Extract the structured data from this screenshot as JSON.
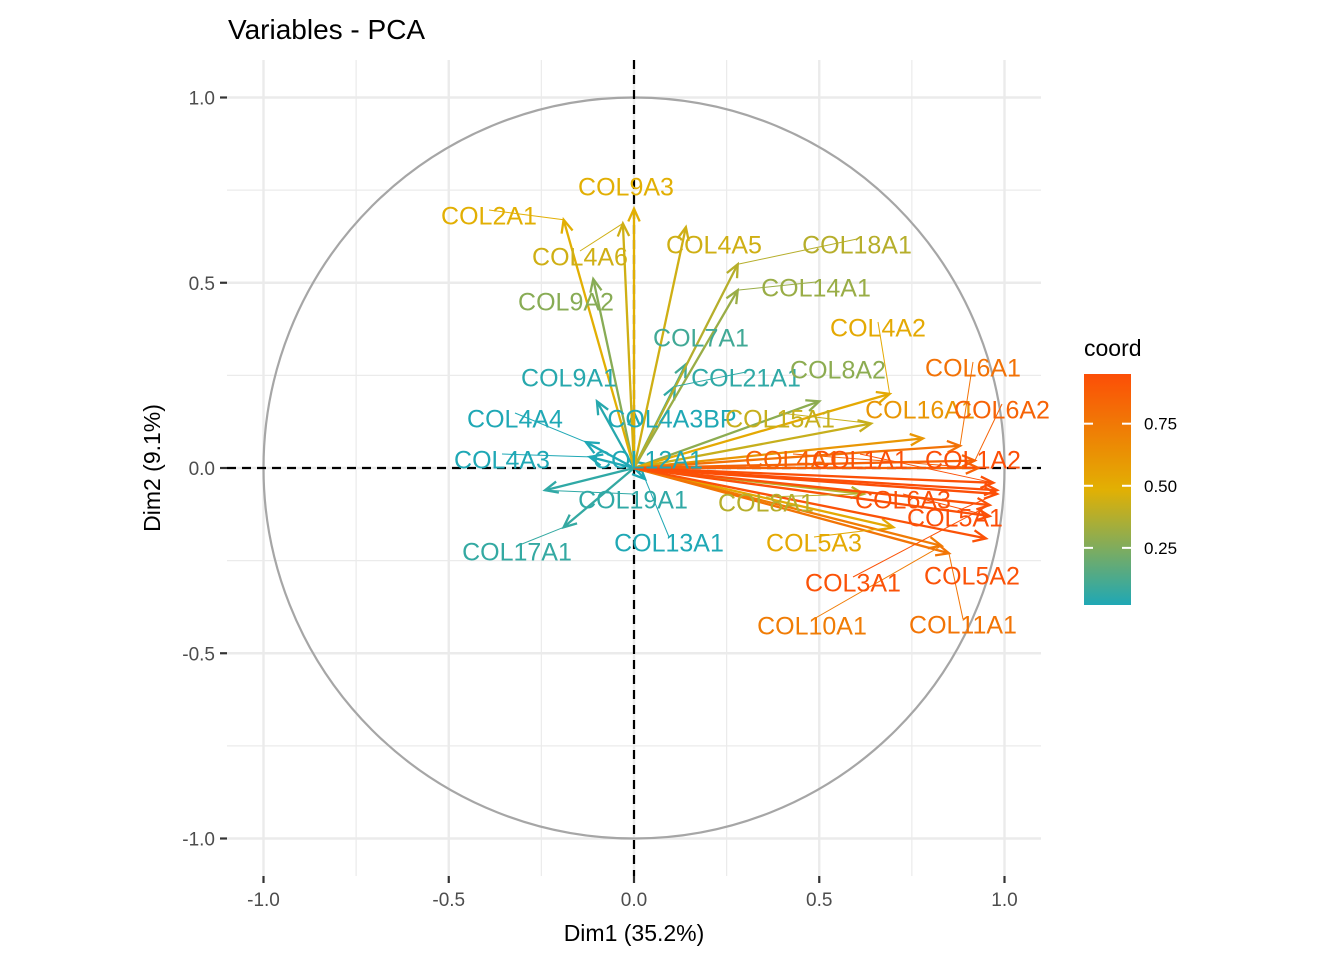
{
  "chart_data": {
    "type": "scatter",
    "title": "Variables - PCA",
    "xlabel": "Dim1 (35.2%)",
    "ylabel": "Dim2 (9.1%)",
    "xlim": [
      -1.05,
      1.05
    ],
    "ylim": [
      -1.1,
      1.1
    ],
    "x_ticks": [
      -1.0,
      -0.5,
      0.0,
      0.5,
      1.0
    ],
    "x_tick_labels": [
      "-1.0",
      "-0.5",
      "0.0",
      "0.5",
      "1.0"
    ],
    "y_ticks": [
      1.0,
      0.5,
      0.0,
      -0.5,
      -1.0
    ],
    "y_tick_labels": [
      "1.0",
      "0.5",
      "0.0",
      "-0.5",
      "-1.0"
    ],
    "grid": true,
    "unit_circle": true,
    "reference_lines": [
      "x=0",
      "y=0"
    ],
    "legend": {
      "title": "coord",
      "position": "right",
      "ticks": [
        0.75,
        0.5,
        0.25
      ],
      "tick_labels": [
        "0.75",
        "0.50",
        "0.25"
      ],
      "range": [
        0.02,
        0.95
      ],
      "colors": {
        "low": "#1fa8b5",
        "mid": "#e2b003",
        "high": "#fc4e07"
      }
    },
    "variables": [
      {
        "name": "COL2A1",
        "x": -0.19,
        "y": 0.67,
        "coord": 0.49
      },
      {
        "name": "COL9A3",
        "x": 0.0,
        "y": 0.7,
        "coord": 0.49
      },
      {
        "name": "COL4A6",
        "x": -0.03,
        "y": 0.66,
        "coord": 0.44
      },
      {
        "name": "COL4A5",
        "x": 0.14,
        "y": 0.65,
        "coord": 0.44
      },
      {
        "name": "COL18A1",
        "x": 0.28,
        "y": 0.55,
        "coord": 0.38
      },
      {
        "name": "COL14A1",
        "x": 0.28,
        "y": 0.48,
        "coord": 0.31
      },
      {
        "name": "COL9A2",
        "x": -0.11,
        "y": 0.51,
        "coord": 0.27
      },
      {
        "name": "COL7A1",
        "x": 0.14,
        "y": 0.28,
        "coord": 0.1
      },
      {
        "name": "COL4A2",
        "x": 0.69,
        "y": 0.2,
        "coord": 0.52
      },
      {
        "name": "COL8A2",
        "x": 0.5,
        "y": 0.18,
        "coord": 0.28
      },
      {
        "name": "COL9A1",
        "x": -0.1,
        "y": 0.18,
        "coord": 0.04
      },
      {
        "name": "COL21A1",
        "x": 0.11,
        "y": 0.22,
        "coord": 0.06
      },
      {
        "name": "COL6A1",
        "x": 0.88,
        "y": 0.06,
        "coord": 0.78
      },
      {
        "name": "COL16A1",
        "x": 0.78,
        "y": 0.08,
        "coord": 0.61
      },
      {
        "name": "COL6A2",
        "x": 0.92,
        "y": 0.02,
        "coord": 0.85
      },
      {
        "name": "COL4A4",
        "x": -0.13,
        "y": 0.07,
        "coord": 0.02
      },
      {
        "name": "COL4A3BP",
        "x": 0.0,
        "y": 0.15,
        "coord": 0.02
      },
      {
        "name": "COL15A1",
        "x": 0.64,
        "y": 0.12,
        "coord": 0.42
      },
      {
        "name": "COL4A3",
        "x": -0.12,
        "y": 0.03,
        "coord": 0.02
      },
      {
        "name": "COL12A1",
        "x": 0.04,
        "y": 0.01,
        "coord": 0.02
      },
      {
        "name": "COL4A1",
        "x": 0.93,
        "y": 0.0,
        "coord": 0.86
      },
      {
        "name": "COL1A1",
        "x": 0.97,
        "y": -0.04,
        "coord": 0.94
      },
      {
        "name": "COL1A2",
        "x": 0.98,
        "y": -0.06,
        "coord": 0.95
      },
      {
        "name": "COL19A1",
        "x": -0.24,
        "y": -0.06,
        "coord": 0.06
      },
      {
        "name": "COL8A1",
        "x": 0.62,
        "y": -0.07,
        "coord": 0.38
      },
      {
        "name": "COL6A3",
        "x": 0.96,
        "y": -0.13,
        "coord": 0.94
      },
      {
        "name": "COL5A1",
        "x": 0.98,
        "y": -0.07,
        "coord": 0.95
      },
      {
        "name": "COL17A1",
        "x": -0.19,
        "y": -0.16,
        "coord": 0.07
      },
      {
        "name": "COL13A1",
        "x": 0.03,
        "y": -0.03,
        "coord": 0.02
      },
      {
        "name": "COL5A3",
        "x": 0.7,
        "y": -0.16,
        "coord": 0.52
      },
      {
        "name": "COL3A1",
        "x": 0.96,
        "y": -0.1,
        "coord": 0.93
      },
      {
        "name": "COL5A2",
        "x": 0.95,
        "y": -0.19,
        "coord": 0.93
      },
      {
        "name": "COL10A1",
        "x": 0.83,
        "y": -0.21,
        "coord": 0.73
      },
      {
        "name": "COL11A1",
        "x": 0.85,
        "y": -0.23,
        "coord": 0.77
      }
    ]
  }
}
